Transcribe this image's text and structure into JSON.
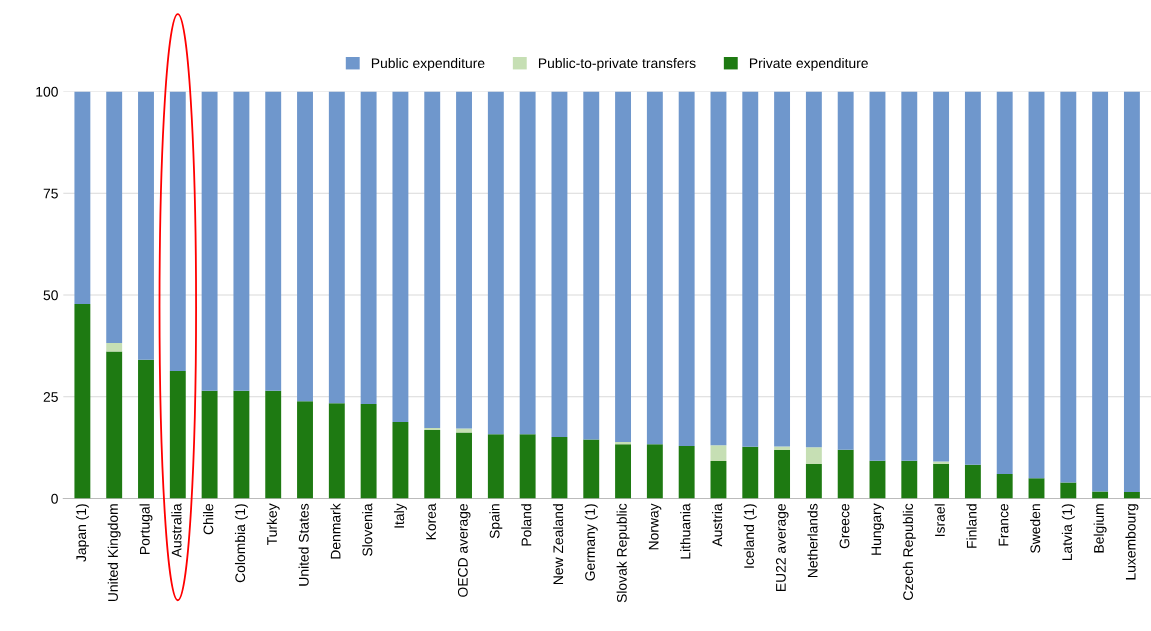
{
  "chart_data": {
    "type": "bar",
    "stacked": true,
    "categories": [
      "Japan (1)",
      "United Kingdom",
      "Portugal",
      "Australia",
      "Chile",
      "Colombia (1)",
      "Turkey",
      "United States",
      "Denmark",
      "Slovenia",
      "Italy",
      "Korea",
      "OECD average",
      "Spain",
      "Poland",
      "New Zealand",
      "Germany (1)",
      "Slovak Republic",
      "Norway",
      "Lithuania",
      "Austria",
      "Iceland (1)",
      "EU22 average",
      "Netherlands",
      "Greece",
      "Hungary",
      "Czech Republic",
      "Israel",
      "Finland",
      "France",
      "Sweden",
      "Latvia (1)",
      "Belgium",
      "Luxembourg"
    ],
    "series": [
      {
        "name": "Private expenditure",
        "color": "#1e7a12",
        "values": [
          47.8,
          36.1,
          34.1,
          31.3,
          26.5,
          26.5,
          26.5,
          23.9,
          23.4,
          23.2,
          18.8,
          16.8,
          16.2,
          15.8,
          15.8,
          15.1,
          14.5,
          13.3,
          13.3,
          12.9,
          9.2,
          12.7,
          11.9,
          8.5,
          12.0,
          9.3,
          9.3,
          8.5,
          8.3,
          6.0,
          5.0,
          3.9,
          1.7,
          1.6
        ]
      },
      {
        "name": "Public-to-private transfers",
        "color": "#c6dfb4",
        "values": [
          0,
          2.1,
          0,
          0,
          0,
          0,
          0,
          0,
          0,
          0,
          0,
          0.5,
          1.0,
          0,
          0,
          0,
          0,
          0.6,
          0,
          0,
          3.9,
          0,
          0.9,
          4.1,
          0,
          0,
          0,
          0.6,
          0,
          0,
          0,
          0,
          0,
          0
        ]
      },
      {
        "name": "Public expenditure",
        "color": "#6f97cc",
        "values": [
          52.2,
          61.8,
          65.9,
          68.7,
          73.5,
          73.5,
          73.5,
          76.1,
          76.6,
          76.8,
          81.2,
          82.7,
          82.8,
          84.2,
          84.2,
          84.9,
          85.5,
          86.1,
          86.7,
          87.1,
          86.9,
          87.3,
          87.2,
          87.4,
          88.0,
          90.7,
          90.7,
          90.9,
          91.7,
          94.0,
          95.0,
          96.1,
          98.3,
          98.4
        ]
      }
    ],
    "ylim": [
      0,
      100
    ],
    "yticks": [
      0,
      25,
      50,
      75,
      100
    ],
    "grid": "y",
    "legend": "top"
  }
}
